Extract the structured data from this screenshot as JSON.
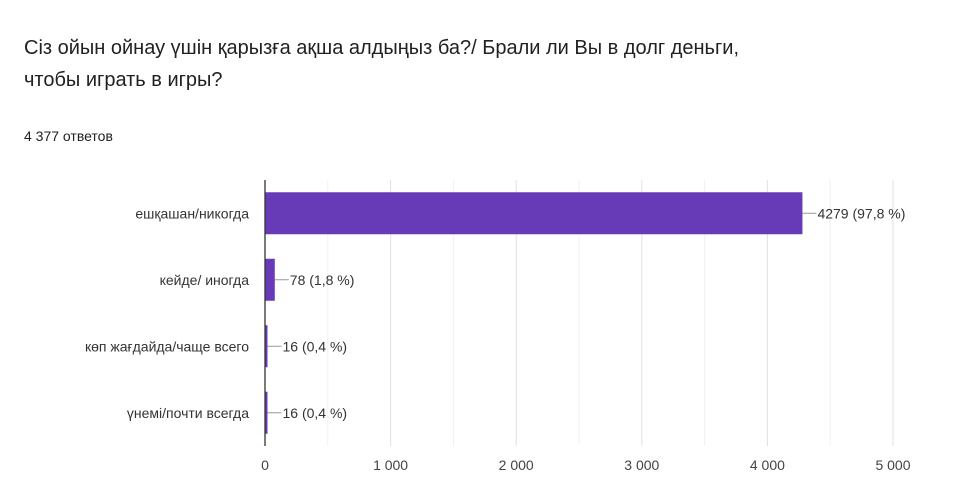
{
  "header": {
    "question": "Сіз  ойын ойнау үшін қарызға ақша алдыңыз ба?/ Брали ли Вы в долг деньги, чтобы играть в игры?",
    "responses": "4 377 ответов"
  },
  "chart_data": {
    "type": "bar",
    "orientation": "horizontal",
    "title": "Сіз  ойын ойнау үшін қарызға ақша алдыңыз ба?/ Брали ли Вы в долг деньги, чтобы играть в игры?",
    "categories": [
      "ешқашан/никогда",
      "кейде/ иногда",
      "көп жағдайда/чаще всего",
      "үнемі/почти всегда"
    ],
    "values": [
      4279,
      78,
      16,
      16
    ],
    "data_labels": [
      "4279 (97,8 %)",
      "78 (1,8 %)",
      "16 (0,4 %)",
      "16 (0,4 %)"
    ],
    "xlim": [
      0,
      5000
    ],
    "x_ticks": [
      0,
      1000,
      2000,
      3000,
      4000,
      5000
    ],
    "x_tick_labels": [
      "0",
      "1 000",
      "2 000",
      "3 000",
      "4 000",
      "5 000"
    ],
    "grid": true,
    "bar_color": "#673ab7"
  }
}
